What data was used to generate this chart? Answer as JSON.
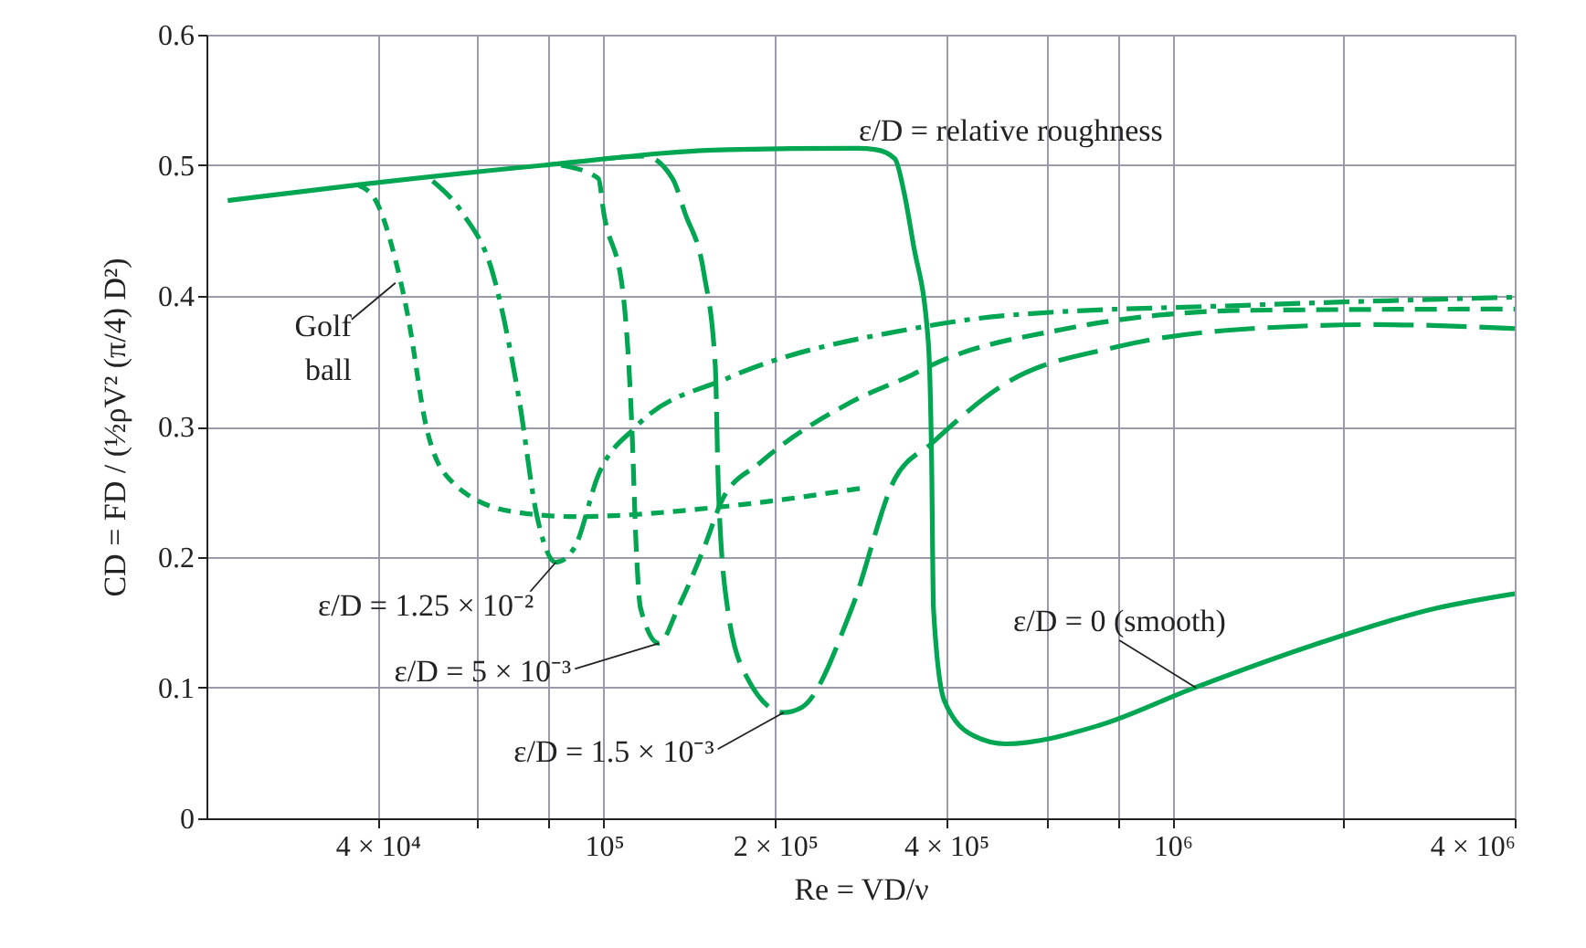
{
  "chart_data": {
    "type": "line",
    "xlabel": "Re = VD/ν",
    "ylabel": "CD = FD / (½ρV² (π/4) D²)",
    "log": "x",
    "grid": true,
    "xlim": [
      20000,
      4000000
    ],
    "xticks": [
      {
        "value": 40000,
        "label": "4 × 10⁴"
      },
      {
        "value": 60000,
        "label": null
      },
      {
        "value": 80000,
        "label": null
      },
      {
        "value": 100000,
        "label": "10⁵"
      },
      {
        "value": 200000,
        "label": "2 × 10⁵"
      },
      {
        "value": 400000,
        "label": "4 × 10⁵"
      },
      {
        "value": 600000,
        "label": null
      },
      {
        "value": 800000,
        "label": null
      },
      {
        "value": 1000000,
        "label": "10⁶"
      },
      {
        "value": 2000000,
        "label": null
      },
      {
        "value": 4000000,
        "label": "4 × 10⁶"
      }
    ],
    "ylim": [
      0,
      0.6
    ],
    "yticks": [
      0,
      0.1,
      0.2,
      0.3,
      0.4,
      0.5,
      0.6
    ],
    "series": [
      {
        "color": "#00a651",
        "line_style": "solid",
        "x": [
          21800,
          36900,
          78100,
          165000,
          279000,
          301000,
          325000,
          337000,
          350000,
          372000,
          377000,
          380000,
          397000,
          448000,
          509000,
          741000,
          1080000,
          1780000,
          2920000,
          4000000
        ],
        "values": [
          0.473,
          0.485,
          0.5,
          0.512,
          0.513,
          0.512,
          0.505,
          0.48,
          0.44,
          0.365,
          0.277,
          0.16,
          0.09,
          0.063,
          0.057,
          0.071,
          0.099,
          0.133,
          0.161,
          0.172
        ]
      },
      {
        "color": "#00a651",
        "line_style": "longdash",
        "x": [
          100000,
          118000,
          132000,
          139000,
          150000,
          157000,
          159000,
          165000,
          178000,
          207000,
          223000,
          273000,
          325000,
          377000,
          509000,
          798000,
          1380000,
          2280000,
          4000000
        ],
        "values": [
          0.505,
          0.507,
          0.49,
          0.463,
          0.417,
          0.347,
          0.253,
          0.161,
          0.109,
          0.081,
          0.085,
          0.161,
          0.26,
          0.287,
          0.333,
          0.361,
          0.375,
          0.378,
          0.375
        ]
      },
      {
        "color": "#00a651",
        "line_style": "dashed",
        "x": [
          84100,
          97800,
          100000,
          108000,
          112000,
          114000,
          116000,
          125000,
          135000,
          150000,
          162000,
          188000,
          273000,
          350000,
          377000,
          652000,
          1380000,
          4000000
        ],
        "values": [
          0.5,
          0.49,
          0.463,
          0.403,
          0.3,
          0.207,
          0.161,
          0.134,
          0.161,
          0.207,
          0.245,
          0.272,
          0.319,
          0.34,
          0.347,
          0.375,
          0.389,
          0.39
        ]
      },
      {
        "color": "#00a651",
        "line_style": "dashdot",
        "x": [
          50000,
          56500,
          63800,
          70800,
          76300,
          82300,
          88700,
          97800,
          114000,
          165000,
          350000,
          509000,
          1380000,
          4000000
        ],
        "values": [
          0.488,
          0.463,
          0.417,
          0.323,
          0.231,
          0.196,
          0.207,
          0.263,
          0.3,
          0.337,
          0.375,
          0.385,
          0.393,
          0.399
        ]
      },
      {
        "color": "#00a651",
        "line_style": "shortdash",
        "x": [
          36900,
          39700,
          42800,
          45200,
          48700,
          53700,
          68700,
          88700,
          165000,
          286000
        ],
        "values": [
          0.485,
          0.473,
          0.431,
          0.385,
          0.3,
          0.259,
          0.235,
          0.231,
          0.239,
          0.253
        ]
      }
    ],
    "annotations": [
      "ε/D = relative roughness",
      {
        "text": "Golf ball",
        "x": 43000,
        "y": 0.41
      },
      {
        "text": "ε/D = 1.25 × 10⁻²",
        "x": 82300,
        "y": 0.196
      },
      {
        "text": "ε/D = 5 × 10⁻³",
        "x": 125000,
        "y": 0.134
      },
      {
        "text": "ε/D = 1.5 × 10⁻³",
        "x": 207000,
        "y": 0.081
      },
      {
        "text": "ε/D = 0 (smooth)",
        "x": 1100000,
        "y": 0.1
      }
    ]
  }
}
